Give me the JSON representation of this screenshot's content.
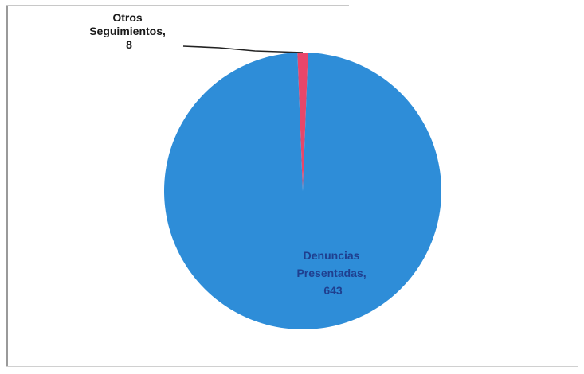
{
  "chart_data": {
    "type": "pie",
    "title": "",
    "colors": [
      "#2e8dd8",
      "#e8466a"
    ],
    "legend": "none",
    "slices": [
      {
        "name": "Denuncias Presentadas",
        "value": 643,
        "label_lines": [
          "Denuncias",
          "Presentadas,",
          "643"
        ],
        "label_color": "#1f3f8f"
      },
      {
        "name": "Otros Seguimientos",
        "value": 8,
        "label_lines": [
          "Otros",
          "Seguimientos,",
          "8"
        ],
        "label_color": "#1a1a1a"
      }
    ]
  }
}
